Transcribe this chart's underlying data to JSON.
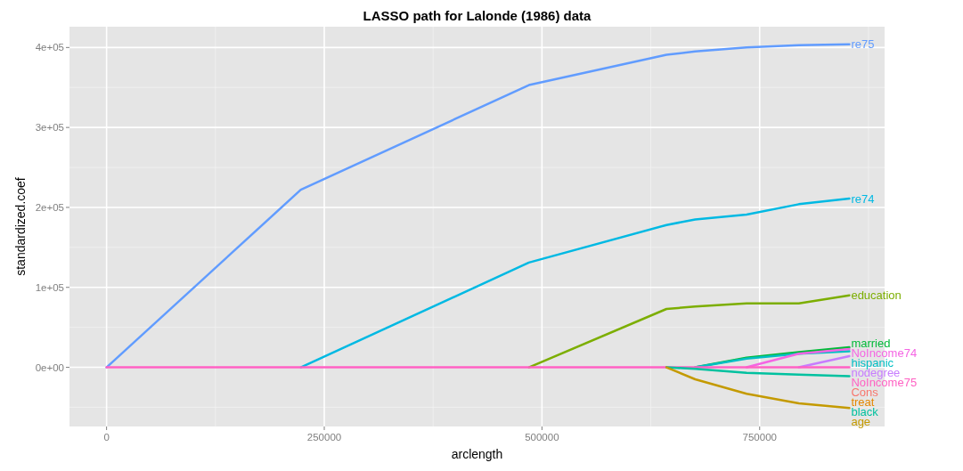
{
  "chart_data": {
    "type": "line",
    "title": "LASSO path for Lalonde (1986) data",
    "xlabel": "arclength",
    "ylabel": "standardized.coef",
    "x": [
      0,
      223000,
      485000,
      643000,
      676000,
      735000,
      795000,
      853000
    ],
    "xlim": [
      -42600,
      893500
    ],
    "xticks": [
      0,
      250000,
      500000,
      750000
    ],
    "ylim": [
      -74000,
      426000
    ],
    "yticks": [
      {
        "value": 0,
        "label": "0e+00"
      },
      {
        "value": 100000,
        "label": "1e+05"
      },
      {
        "value": 200000,
        "label": "2e+05"
      },
      {
        "value": 300000,
        "label": "3e+05"
      },
      {
        "value": 400000,
        "label": "4e+05"
      }
    ],
    "grid": true,
    "line_style": "solid",
    "marker": "none",
    "series": [
      {
        "name": "re75",
        "color": "#619cff",
        "values": [
          0,
          222000,
          353000,
          391000,
          395000,
          400000,
          403000,
          404000
        ]
      },
      {
        "name": "re74",
        "color": "#00b9e3",
        "values": [
          null,
          0,
          131000,
          178000,
          185000,
          191000,
          204000,
          211000
        ]
      },
      {
        "name": "education",
        "color": "#7cae00",
        "values": [
          null,
          null,
          0,
          73000,
          76000,
          80000,
          80000,
          90000
        ]
      },
      {
        "name": "married",
        "color": "#00ba38",
        "values": [
          null,
          null,
          null,
          null,
          0,
          12000,
          19000,
          25000
        ]
      },
      {
        "name": "hispanic",
        "color": "#00bfc4",
        "values": [
          null,
          null,
          null,
          null,
          0,
          11000,
          17000,
          20000
        ]
      },
      {
        "name": "NoIncome74",
        "color": "#f564e3",
        "values": [
          null,
          null,
          null,
          null,
          null,
          0,
          17000,
          23000
        ]
      },
      {
        "name": "nodegree",
        "color": "#c77cff",
        "values": [
          null,
          null,
          null,
          null,
          null,
          null,
          0,
          14000
        ]
      },
      {
        "name": "NoIncome75",
        "color": "#ff61c3",
        "values": [
          0,
          0,
          0,
          0,
          0,
          0,
          0,
          0
        ]
      },
      {
        "name": "Cons",
        "color": "#f8766d",
        "values": [
          null,
          null,
          null,
          null,
          null,
          null,
          null,
          null
        ]
      },
      {
        "name": "treat",
        "color": "#e58700",
        "values": [
          null,
          null,
          null,
          null,
          null,
          null,
          null,
          null
        ]
      },
      {
        "name": "black",
        "color": "#00c19f",
        "values": [
          null,
          null,
          null,
          0,
          -2000,
          -7000,
          -9000,
          -11000
        ]
      },
      {
        "name": "age",
        "color": "#c49a00",
        "values": [
          null,
          null,
          null,
          0,
          -15000,
          -33000,
          -45000,
          -51000
        ]
      }
    ]
  }
}
